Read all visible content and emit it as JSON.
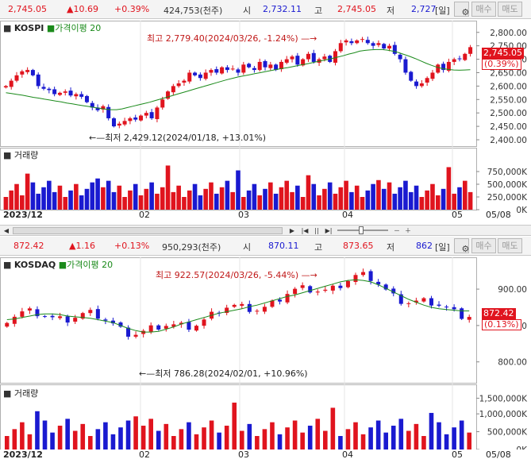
{
  "kospi_quote": {
    "price": "2,745.05",
    "change": "▲10.69",
    "pct": "+0.39%",
    "volume": "424,753(천주)",
    "open_label": "시",
    "open": "2,732.11",
    "high_label": "고",
    "high": "2,745.05",
    "low_label": "저",
    "low": "2,727",
    "period": "[일]",
    "buy": "매수",
    "sell": "매도"
  },
  "kospi_chart": {
    "title": "KOSPI",
    "ma_label": "가격이평 20",
    "max_note": "최고 2,779.40(2024/03/26, -1.24%)",
    "min_note": "최저 2,429.12(2024/01/18, +13.01%)",
    "last_price": "2,745.05",
    "last_pct": "(0.39%)",
    "y_ticks": [
      "2,800.00",
      "2,750.00",
      "2,700.00",
      "2,650.00",
      "2,600.00",
      "2,550.00",
      "2,500.00",
      "2,450.00",
      "2,400.00"
    ],
    "vol_title": "거래량",
    "vol_ticks": [
      "750,000K",
      "500,000K",
      "250,000K",
      "0K"
    ]
  },
  "kosdaq_quote": {
    "price": "872.42",
    "change": "▲1.16",
    "pct": "+0.13%",
    "volume": "950,293(천주)",
    "open_label": "시",
    "open": "870.11",
    "high_label": "고",
    "high": "873.65",
    "low_label": "저",
    "low": "862",
    "period": "[일]",
    "buy": "매수",
    "sell": "매도"
  },
  "kosdaq_chart": {
    "title": "KOSDAQ",
    "ma_label": "가격이평 20",
    "max_note": "최고 922.57(2024/03/26, -5.44%)",
    "min_note": "최저 786.28(2024/02/01, +10.96%)",
    "last_price": "872.42",
    "last_pct": "(0.13%)",
    "y_ticks": [
      "900.00",
      "850.00",
      "800.00"
    ],
    "vol_title": "거래량",
    "vol_ticks": [
      "1,500,000K",
      "1,000,000K",
      "500,000K",
      "0K"
    ]
  },
  "x_axis": {
    "start": "2023/12",
    "months": [
      "02",
      "03",
      "04",
      "05"
    ],
    "end": "05/08"
  },
  "icons": {
    "gear": "gear-icon",
    "scroll_left": "arrow-left-icon",
    "scroll_right": "arrow-right-icon"
  },
  "colors": {
    "up": "#e0141e",
    "down": "#1a1ad0",
    "ma": "#1a8a1a"
  },
  "chart_data": [
    {
      "type": "candlestick",
      "title": "KOSPI",
      "ylim": [
        2400,
        2820
      ],
      "series": [
        {
          "name": "가격이평 20",
          "values": [
            2575,
            2572,
            2569,
            2566,
            2562,
            2558,
            2555,
            2551,
            2548,
            2544,
            2541,
            2537,
            2534,
            2530,
            2527,
            2524,
            2520,
            2517,
            2514,
            2512,
            2512,
            2515,
            2520,
            2525,
            2530,
            2535,
            2540,
            2546,
            2552,
            2558,
            2564,
            2570,
            2576,
            2582,
            2588,
            2594,
            2600,
            2606,
            2612,
            2618,
            2624,
            2629,
            2634,
            2638,
            2642,
            2646,
            2650,
            2654,
            2658,
            2662,
            2666,
            2669,
            2673,
            2677,
            2681,
            2685,
            2690,
            2694,
            2698,
            2703,
            2708,
            2713,
            2719,
            2724,
            2730,
            2733,
            2735,
            2736,
            2736,
            2734,
            2730,
            2725,
            2718,
            2711,
            2703,
            2694,
            2685,
            2677,
            2670,
            2665,
            2662,
            2660,
            2659,
            2660,
            2661
          ]
        },
        {
          "name": "close",
          "values": [
            2600,
            2620,
            2640,
            2655,
            2660,
            2640,
            2600,
            2590,
            2585,
            2570,
            2575,
            2580,
            2565,
            2570,
            2560,
            2540,
            2520,
            2510,
            2525,
            2480,
            2450,
            2460,
            2470,
            2480,
            2475,
            2490,
            2500,
            2480,
            2520,
            2550,
            2580,
            2600,
            2610,
            2620,
            2650,
            2640,
            2630,
            2650,
            2660,
            2650,
            2670,
            2660,
            2665,
            2650,
            2680,
            2670,
            2660,
            2690,
            2670,
            2680,
            2660,
            2690,
            2700,
            2710,
            2680,
            2700,
            2720,
            2690,
            2700,
            2710,
            2690,
            2730,
            2760,
            2770,
            2760,
            2770,
            2775,
            2760,
            2750,
            2760,
            2740,
            2750,
            2720,
            2700,
            2650,
            2620,
            2600,
            2610,
            2630,
            2650,
            2680,
            2660,
            2690,
            2700,
            2700,
            2720,
            2745
          ]
        }
      ]
    },
    {
      "type": "candlestick",
      "title": "KOSDAQ",
      "ylim": [
        780,
        935
      ],
      "series": [
        {
          "name": "가격이평 20",
          "values": [
            858,
            859,
            861,
            863,
            865,
            866,
            866,
            865,
            863,
            862,
            861,
            860,
            858,
            856,
            854,
            850,
            846,
            843,
            841,
            841,
            842,
            845,
            848,
            852,
            855,
            858,
            861,
            864,
            867,
            869,
            871,
            873,
            876,
            878,
            881,
            884,
            887,
            890,
            892,
            895,
            898,
            901,
            904,
            907,
            910,
            912,
            913,
            912,
            910,
            906,
            901,
            896,
            891,
            886,
            882,
            878,
            875,
            873,
            872,
            871,
            870,
            870
          ]
        }
      ]
    }
  ]
}
